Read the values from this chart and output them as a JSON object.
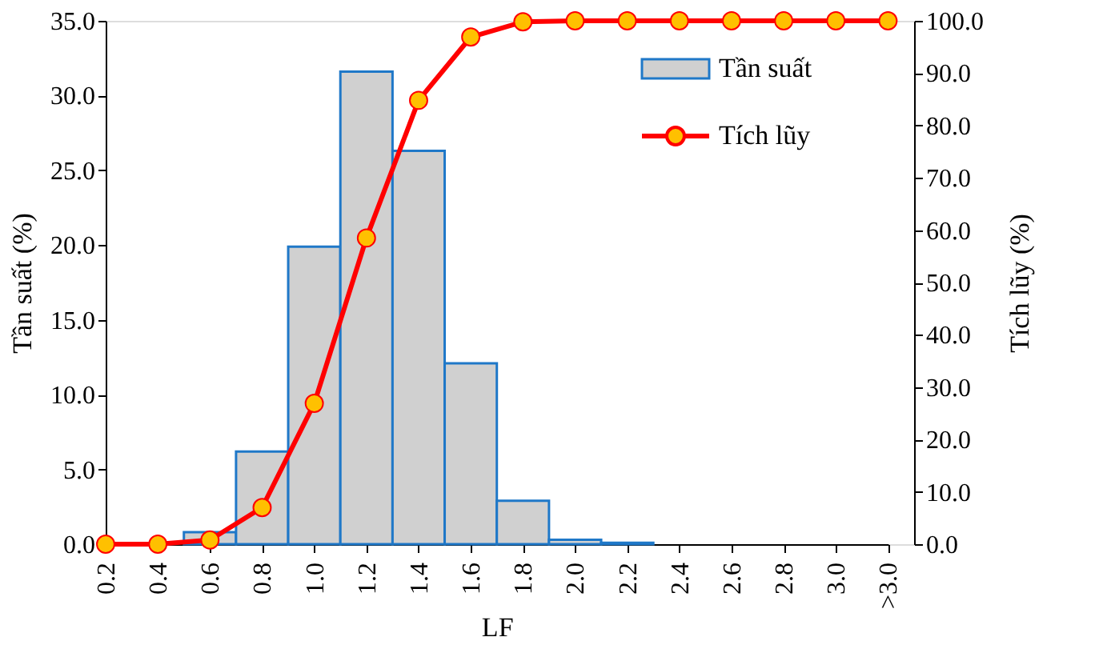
{
  "chart_data": {
    "type": "bar",
    "xlabel": "LF",
    "ylabel": "Tần suất (%)",
    "y2label": "Tích lũy (%)",
    "categories": [
      "0.2",
      "0.4",
      "0.6",
      "0.8",
      "1.0",
      "1.2",
      "1.4",
      "1.6",
      "1.8",
      "2.0",
      "2.2",
      "2.4",
      "2.6",
      "2.8",
      "3.0",
      ">3.0"
    ],
    "series": [
      {
        "name": "Tần suất",
        "color": "#d0d0d0",
        "values": [
          0,
          0,
          0.8,
          6.2,
          19.9,
          31.6,
          26.3,
          12.1,
          2.9,
          0.3,
          0.1,
          0,
          0,
          0,
          0,
          0
        ]
      },
      {
        "name": "Tích lũy",
        "type": "line",
        "axis": "y2",
        "color": "#ff0000",
        "marker": "circle",
        "line_style": "solid",
        "values": [
          0,
          0,
          0.8,
          7.0,
          26.9,
          58.5,
          84.8,
          96.9,
          99.8,
          100,
          100,
          100,
          100,
          100,
          100,
          100
        ]
      }
    ],
    "ylim": [
      0,
      35
    ],
    "yticks": [
      {
        "value": 0,
        "label": "0.0"
      },
      {
        "value": 5,
        "label": "5.0"
      },
      {
        "value": 10,
        "label": "10.0"
      },
      {
        "value": 15,
        "label": "15.0"
      },
      {
        "value": 20,
        "label": "20.0"
      },
      {
        "value": 25,
        "label": "25.0"
      },
      {
        "value": 30,
        "label": "30.0"
      },
      {
        "value": 35,
        "label": "35.0"
      }
    ],
    "y2lim": [
      0,
      100
    ],
    "y2ticks": [
      {
        "value": 0,
        "label": "0.0"
      },
      {
        "value": 10,
        "label": "10.0"
      },
      {
        "value": 20,
        "label": "20.0"
      },
      {
        "value": 30,
        "label": "30.0"
      },
      {
        "value": 40,
        "label": "40.0"
      },
      {
        "value": 50,
        "label": "50.0"
      },
      {
        "value": 60,
        "label": "60.0"
      },
      {
        "value": 70,
        "label": "70.0"
      },
      {
        "value": 80,
        "label": "80.0"
      },
      {
        "value": 90,
        "label": "90.0"
      },
      {
        "value": 100,
        "label": "100.0"
      }
    ],
    "grid": false,
    "legend": "top right"
  }
}
